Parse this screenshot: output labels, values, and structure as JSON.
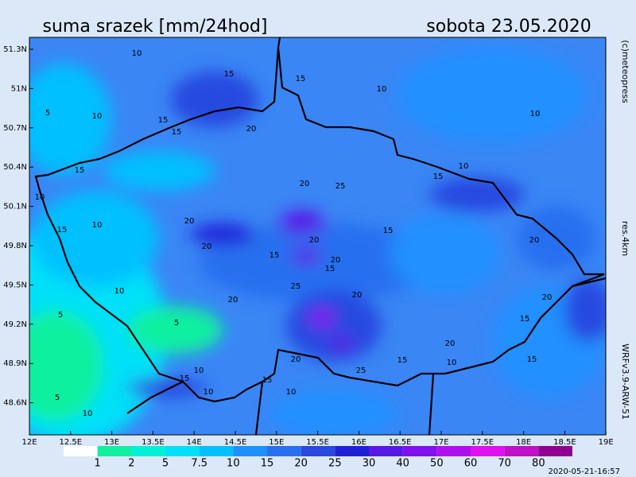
{
  "header": {
    "title": "suma srazek [mm/24hod]",
    "date": "sobota 23.05.2020"
  },
  "map": {
    "lat_labels": [
      "51.3N",
      "51N",
      "50.7N",
      "50.4N",
      "50.1N",
      "49.8N",
      "49.5N",
      "49.2N",
      "48.9N",
      "48.6N"
    ],
    "lon_labels": [
      "12E",
      "12.5E",
      "13E",
      "13.5E",
      "14E",
      "14.5E",
      "15E",
      "15.5E",
      "16E",
      "16.5E",
      "17E",
      "17.5E",
      "18E",
      "18.5E",
      "19E"
    ],
    "contour_labels": [
      10,
      15,
      15,
      10,
      5,
      10,
      15,
      15,
      20,
      10,
      15,
      10,
      20,
      25,
      15,
      10,
      10,
      15,
      20,
      15,
      20,
      20,
      20,
      15,
      20,
      15,
      25,
      20,
      20,
      10,
      20,
      5,
      5,
      15,
      20,
      20,
      25,
      15,
      10,
      15,
      10,
      15,
      10,
      10,
      5,
      10,
      15
    ]
  },
  "side_labels": {
    "copyright": "(c)meteopress",
    "resolution": "res.4km",
    "model": "WRFv3.9-ARW-51"
  },
  "legend": {
    "values": [
      1,
      2,
      5,
      7.5,
      10,
      15,
      20,
      25,
      30,
      40,
      50,
      60,
      70,
      80
    ],
    "colors": [
      "#ffffff",
      "#10f0a0",
      "#00f0d8",
      "#00e0f8",
      "#00c0ff",
      "#2090ff",
      "#2870f0",
      "#2848e0",
      "#2020d8",
      "#5818e8",
      "#8010f0",
      "#b010f0",
      "#e010f0",
      "#c010c8",
      "#900090"
    ]
  },
  "timestamp": "2020-05-21-16:57"
}
